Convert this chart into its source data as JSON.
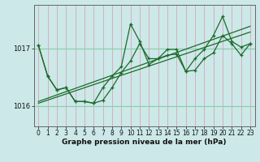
{
  "xlabel": "Graphe pression niveau de la mer (hPa)",
  "background_color": "#cce8e8",
  "vgrid_color": "#d4a8b8",
  "hgrid_color": "#88ccaa",
  "line_color": "#1a6b2a",
  "ylim": [
    1015.65,
    1017.75
  ],
  "xlim": [
    -0.5,
    23.5
  ],
  "yticks": [
    1016.0,
    1017.0
  ],
  "series1": [
    1017.05,
    1016.52,
    1016.28,
    1016.32,
    1016.08,
    1016.08,
    1016.05,
    1016.1,
    1016.32,
    1016.58,
    1016.78,
    1017.08,
    1016.82,
    1016.82,
    1016.88,
    1016.9,
    1016.6,
    1016.62,
    1016.82,
    1016.92,
    1017.22,
    1017.08,
    1016.88,
    1017.08
  ],
  "series2": [
    1017.05,
    1016.52,
    1016.28,
    1016.32,
    1016.08,
    1016.08,
    1016.05,
    1016.32,
    1016.52,
    1016.68,
    1017.42,
    1017.12,
    1016.72,
    1016.82,
    1016.98,
    1016.98,
    1016.6,
    1016.82,
    1016.98,
    1017.22,
    1017.55,
    1017.12,
    1017.02,
    1017.08
  ],
  "trend1_x": [
    0,
    23
  ],
  "trend1_y": [
    1016.08,
    1017.38
  ],
  "trend2_x": [
    0,
    23
  ],
  "trend2_y": [
    1016.05,
    1017.28
  ],
  "xlabel_fontsize": 6.5,
  "tick_fontsize": 5.5,
  "ytick_fontsize": 6.0
}
